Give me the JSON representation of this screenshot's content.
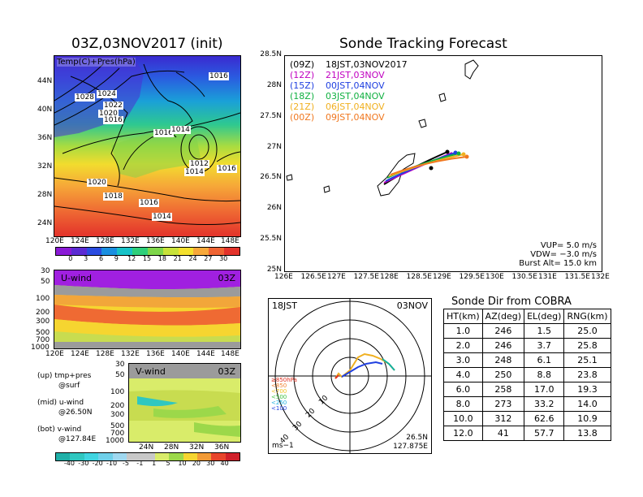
{
  "map_panel": {
    "title": "03Z,03NOV2017 (init)",
    "subtitle": "Temp(C)+Pres(hPa)",
    "lat_labels": [
      "44N",
      "40N",
      "36N",
      "32N",
      "28N",
      "24N"
    ],
    "lon_labels": [
      "120E",
      "124E",
      "128E",
      "132E",
      "136E",
      "140E",
      "144E",
      "148E"
    ],
    "isobar_labels": [
      "1028",
      "1024",
      "1022",
      "1020",
      "1016",
      "1016",
      "1016",
      "1014",
      "1012",
      "1014",
      "1016",
      "1020",
      "1018",
      "1016",
      "1014",
      "1016"
    ],
    "colorbar_ticks": [
      "0",
      "3",
      "6",
      "9",
      "12",
      "15",
      "18",
      "21",
      "24",
      "27",
      "30"
    ],
    "colorbar_colors": [
      "#8a1ad6",
      "#5b2bd3",
      "#2a4ce0",
      "#1a8fe0",
      "#17c2c7",
      "#2ecf7a",
      "#7ed64a",
      "#c8e23a",
      "#f4e02e",
      "#f7a83a",
      "#ef6433",
      "#e3332b"
    ]
  },
  "u_panel": {
    "label": "U-wind",
    "time": "03Z",
    "p_labels": [
      "30",
      "50",
      "100",
      "200",
      "300",
      "500",
      "700",
      "1000"
    ],
    "lon_labels": [
      "120E",
      "124E",
      "128E",
      "132E",
      "136E",
      "140E",
      "144E",
      "148E"
    ]
  },
  "v_panel": {
    "label": "V-wind",
    "time": "03Z",
    "p_labels": [
      "30",
      "50",
      "100",
      "200",
      "300",
      "500",
      "700",
      "1000"
    ],
    "lat_labels": [
      "24N",
      "28N",
      "32N",
      "36N"
    ]
  },
  "legend_notes": {
    "up": "(up) tmp+pres",
    "up2": "@surf",
    "mid": "(mid) u-wind",
    "mid2": "@26.50N",
    "bot": "(bot) v-wind",
    "bot2": "@127.84E"
  },
  "wind_colorbar": {
    "ticks": [
      "-40",
      "-30",
      "-20",
      "-10",
      "-5",
      "-1",
      "1",
      "5",
      "10",
      "20",
      "30",
      "40"
    ],
    "colors": [
      "#1fb0a8",
      "#2fc7c0",
      "#3fd4e0",
      "#6fd0ea",
      "#9fd8f0",
      "#c8c8c8",
      "#c8c8c8",
      "#d9ec6a",
      "#9cd84a",
      "#f6d530",
      "#f29a36",
      "#e8452b",
      "#d0202a"
    ]
  },
  "tracking": {
    "title": "Sonde Tracking Forecast",
    "lat_labels": [
      "28.5N",
      "28N",
      "27.5N",
      "27N",
      "26.5N",
      "26N",
      "25.5N",
      "25N"
    ],
    "lon_labels": [
      "126E",
      "126.5E",
      "127E",
      "127.5E",
      "128E",
      "128.5E",
      "129E",
      "129.5E",
      "130E",
      "130.5E",
      "131E",
      "131.5E",
      "132E"
    ],
    "launches": [
      {
        "utc": "(09Z)",
        "jst": "18JST,03NOV2017",
        "color": "#000000"
      },
      {
        "utc": "(12Z)",
        "jst": "21JST,03NOV",
        "color": "#c000c0"
      },
      {
        "utc": "(15Z)",
        "jst": "00JST,04NOV",
        "color": "#2040e0"
      },
      {
        "utc": "(18Z)",
        "jst": "03JST,04NOV",
        "color": "#10b040"
      },
      {
        "utc": "(21Z)",
        "jst": "06JST,04NOV",
        "color": "#f0b020"
      },
      {
        "utc": "(00Z)",
        "jst": "09JST,04NOV",
        "color": "#f07820"
      }
    ],
    "vup": "VUP= 5.0 m/s",
    "vdw": "VDW= −3.0 m/s",
    "burst": "Burst Alt= 15.0 km"
  },
  "polar": {
    "time_left": "18JST",
    "time_right": "03NOV",
    "ring_labels": [
      "10",
      "20",
      "30",
      "40"
    ],
    "p_legend": [
      "≥850hPa",
      "<850",
      "<700",
      "<500",
      "<250",
      "<100"
    ],
    "p_legend_colors": [
      "#e03020",
      "#f08030",
      "#f0c020",
      "#40c040",
      "#20b0e0",
      "#2040e0"
    ],
    "unit": "ms−1",
    "lat": "26.5N",
    "lon": "127.875E"
  },
  "sonde_dir": {
    "title": "Sonde Dir from COBRA",
    "headers": [
      "HT(km)",
      "AZ(deg)",
      "EL(deg)",
      "RNG(km)"
    ],
    "rows": [
      [
        "1.0",
        "246",
        "1.5",
        "25.0"
      ],
      [
        "2.0",
        "246",
        "3.7",
        "25.8"
      ],
      [
        "3.0",
        "248",
        "6.1",
        "25.1"
      ],
      [
        "4.0",
        "250",
        "8.8",
        "23.8"
      ],
      [
        "6.0",
        "258",
        "17.0",
        "19.3"
      ],
      [
        "8.0",
        "273",
        "33.2",
        "14.0"
      ],
      [
        "10.0",
        "312",
        "62.6",
        "10.9"
      ],
      [
        "12.0",
        "41",
        "57.7",
        "13.8"
      ]
    ]
  }
}
